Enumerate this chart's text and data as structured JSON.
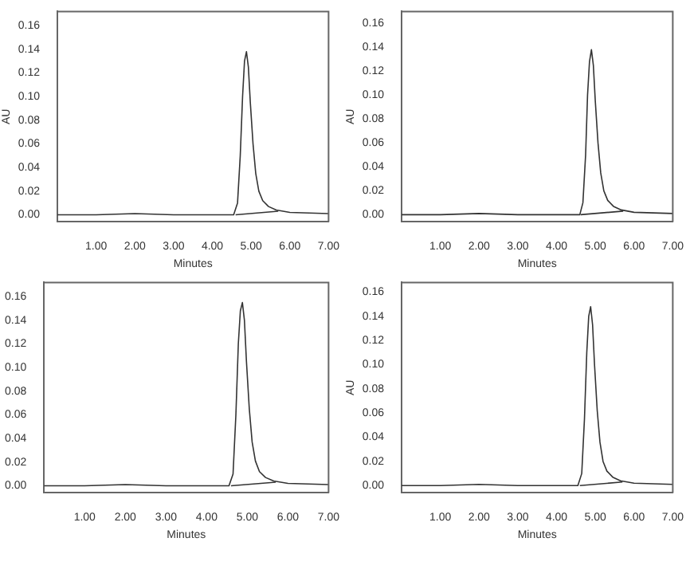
{
  "chart_data": [
    {
      "type": "line",
      "xlabel": "Minutes",
      "ylabel": "AU",
      "xlim": [
        0,
        7
      ],
      "ylim": [
        -0.006,
        0.172
      ],
      "grid": false,
      "legend": false,
      "marker": "none",
      "xticks": [
        {
          "value": 1,
          "label": "1.00"
        },
        {
          "value": 2,
          "label": "2.00"
        },
        {
          "value": 3,
          "label": "3.00"
        },
        {
          "value": 4,
          "label": "4.00"
        },
        {
          "value": 5,
          "label": "5.00"
        },
        {
          "value": 6,
          "label": "6.00"
        },
        {
          "value": 7,
          "label": "7.00"
        }
      ],
      "yticks": [
        {
          "value": 0,
          "label": "0.00"
        },
        {
          "value": 0.02,
          "label": "0.02"
        },
        {
          "value": 0.04,
          "label": "0.04"
        },
        {
          "value": 0.06,
          "label": "0.06"
        },
        {
          "value": 0.08,
          "label": "0.08"
        },
        {
          "value": 0.1,
          "label": "0.10"
        },
        {
          "value": 0.12,
          "label": "0.12"
        },
        {
          "value": 0.14,
          "label": "0.14"
        },
        {
          "value": 0.16,
          "label": "0.16"
        }
      ],
      "series": [
        {
          "color": "#333333",
          "x": [
            0,
            1,
            2,
            3,
            4,
            4.55,
            4.65,
            4.72,
            4.78,
            4.83,
            4.88,
            4.93,
            4.98,
            5.05,
            5.12,
            5.2,
            5.3,
            5.45,
            5.65,
            6,
            7
          ],
          "values": [
            0,
            0,
            0.001,
            0,
            0,
            0,
            0.01,
            0.05,
            0.1,
            0.13,
            0.138,
            0.125,
            0.095,
            0.06,
            0.035,
            0.02,
            0.012,
            0.007,
            0.004,
            0.002,
            0.001
          ]
        },
        {
          "color": "#333333",
          "x": [
            4.6,
            5.7
          ],
          "values": [
            0,
            0.003
          ]
        }
      ]
    },
    {
      "type": "line",
      "xlabel": "Minutes",
      "ylabel": "AU",
      "xlim": [
        0,
        7
      ],
      "ylim": [
        -0.006,
        0.17
      ],
      "grid": false,
      "legend": false,
      "marker": "none",
      "xticks": [
        {
          "value": 1,
          "label": "1.00"
        },
        {
          "value": 2,
          "label": "2.00"
        },
        {
          "value": 3,
          "label": "3.00"
        },
        {
          "value": 4,
          "label": "4.00"
        },
        {
          "value": 5,
          "label": "5.00"
        },
        {
          "value": 6,
          "label": "6.00"
        },
        {
          "value": 7,
          "label": "7.00"
        }
      ],
      "yticks": [
        {
          "value": 0,
          "label": "0.00"
        },
        {
          "value": 0.02,
          "label": "0.02"
        },
        {
          "value": 0.04,
          "label": "0.04"
        },
        {
          "value": 0.06,
          "label": "0.06"
        },
        {
          "value": 0.08,
          "label": "0.08"
        },
        {
          "value": 0.1,
          "label": "0.10"
        },
        {
          "value": 0.12,
          "label": "0.12"
        },
        {
          "value": 0.14,
          "label": "0.14"
        },
        {
          "value": 0.16,
          "label": "0.16"
        }
      ],
      "series": [
        {
          "color": "#333333",
          "x": [
            0,
            1,
            2,
            3,
            4,
            4.6,
            4.68,
            4.75,
            4.8,
            4.85,
            4.9,
            4.95,
            5.0,
            5.07,
            5.14,
            5.22,
            5.32,
            5.47,
            5.67,
            6,
            7
          ],
          "values": [
            0,
            0,
            0.001,
            0,
            0,
            0,
            0.01,
            0.05,
            0.1,
            0.128,
            0.138,
            0.125,
            0.095,
            0.06,
            0.035,
            0.02,
            0.012,
            0.007,
            0.004,
            0.002,
            0.001
          ]
        },
        {
          "color": "#333333",
          "x": [
            4.62,
            5.72
          ],
          "values": [
            0,
            0.003
          ]
        }
      ]
    },
    {
      "type": "line",
      "xlabel": "Minutes",
      "xlim": [
        0,
        7
      ],
      "ylim": [
        -0.006,
        0.172
      ],
      "grid": false,
      "legend": false,
      "marker": "none",
      "xticks": [
        {
          "value": 1,
          "label": "1.00"
        },
        {
          "value": 2,
          "label": "2.00"
        },
        {
          "value": 3,
          "label": "3.00"
        },
        {
          "value": 4,
          "label": "4.00"
        },
        {
          "value": 5,
          "label": "5.00"
        },
        {
          "value": 6,
          "label": "6.00"
        },
        {
          "value": 7,
          "label": "7.00"
        }
      ],
      "yticks": [
        {
          "value": 0,
          "label": "0.00"
        },
        {
          "value": 0.02,
          "label": "0.02"
        },
        {
          "value": 0.04,
          "label": "0.04"
        },
        {
          "value": 0.06,
          "label": "0.06"
        },
        {
          "value": 0.08,
          "label": "0.08"
        },
        {
          "value": 0.1,
          "label": "0.10"
        },
        {
          "value": 0.12,
          "label": "0.12"
        },
        {
          "value": 0.14,
          "label": "0.14"
        },
        {
          "value": 0.16,
          "label": "0.16"
        }
      ],
      "series": [
        {
          "color": "#333333",
          "x": [
            0,
            1,
            2,
            3,
            4,
            4.55,
            4.65,
            4.72,
            4.78,
            4.83,
            4.88,
            4.93,
            4.98,
            5.05,
            5.12,
            5.2,
            5.3,
            5.45,
            5.65,
            6,
            7
          ],
          "values": [
            0,
            0,
            0.001,
            0,
            0,
            0,
            0.01,
            0.06,
            0.12,
            0.148,
            0.155,
            0.14,
            0.105,
            0.065,
            0.037,
            0.021,
            0.012,
            0.007,
            0.004,
            0.002,
            0.001
          ]
        },
        {
          "color": "#333333",
          "x": [
            4.6,
            5.7
          ],
          "values": [
            0,
            0.003
          ]
        }
      ]
    },
    {
      "type": "line",
      "xlabel": "Minutes",
      "ylabel": "AU",
      "xlim": [
        0,
        7
      ],
      "ylim": [
        -0.006,
        0.168
      ],
      "grid": false,
      "legend": false,
      "marker": "none",
      "xticks": [
        {
          "value": 1,
          "label": "1.00"
        },
        {
          "value": 2,
          "label": "2.00"
        },
        {
          "value": 3,
          "label": "3.00"
        },
        {
          "value": 4,
          "label": "4.00"
        },
        {
          "value": 5,
          "label": "5.00"
        },
        {
          "value": 6,
          "label": "6.00"
        },
        {
          "value": 7,
          "label": "7.00"
        }
      ],
      "yticks": [
        {
          "value": 0,
          "label": "0.00"
        },
        {
          "value": 0.02,
          "label": "0.02"
        },
        {
          "value": 0.04,
          "label": "0.04"
        },
        {
          "value": 0.06,
          "label": "0.06"
        },
        {
          "value": 0.08,
          "label": "0.08"
        },
        {
          "value": 0.1,
          "label": "0.10"
        },
        {
          "value": 0.12,
          "label": "0.12"
        },
        {
          "value": 0.14,
          "label": "0.14"
        },
        {
          "value": 0.16,
          "label": "0.16"
        }
      ],
      "series": [
        {
          "color": "#333333",
          "x": [
            0,
            1,
            2,
            3,
            4,
            4.55,
            4.65,
            4.72,
            4.78,
            4.83,
            4.88,
            4.93,
            4.98,
            5.05,
            5.12,
            5.2,
            5.3,
            5.45,
            5.65,
            6,
            7
          ],
          "values": [
            0,
            0,
            0.001,
            0,
            0,
            0,
            0.01,
            0.055,
            0.11,
            0.14,
            0.148,
            0.133,
            0.1,
            0.062,
            0.036,
            0.02,
            0.012,
            0.007,
            0.004,
            0.002,
            0.001
          ]
        },
        {
          "color": "#333333",
          "x": [
            4.6,
            5.7
          ],
          "values": [
            0,
            0.003
          ]
        }
      ]
    }
  ]
}
